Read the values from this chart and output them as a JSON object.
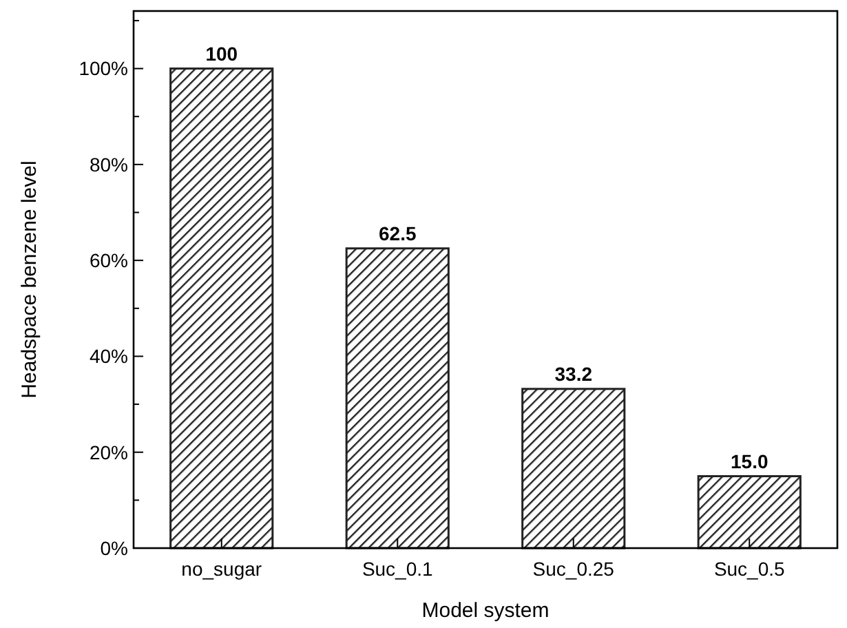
{
  "chart_data": {
    "type": "bar",
    "xlabel": "Model system",
    "ylabel": "Headspace benzene level",
    "categories": [
      "no_sugar",
      "Suc_0.1",
      "Suc_0.25",
      "Suc_0.5"
    ],
    "values": [
      100,
      62.5,
      33.2,
      15.0
    ],
    "value_labels": [
      "100",
      "62.5",
      "33.2",
      "15.0"
    ],
    "color": "#222222",
    "ylim": [
      0,
      112
    ],
    "yticks": [
      {
        "value": 0,
        "label": "0%"
      },
      {
        "value": 10,
        "label": null
      },
      {
        "value": 20,
        "label": "20%"
      },
      {
        "value": 30,
        "label": null
      },
      {
        "value": 40,
        "label": "40%"
      },
      {
        "value": 50,
        "label": null
      },
      {
        "value": 60,
        "label": "60%"
      },
      {
        "value": 70,
        "label": null
      },
      {
        "value": 80,
        "label": "80%"
      },
      {
        "value": 90,
        "label": null
      },
      {
        "value": 100,
        "label": "100%"
      },
      {
        "value": 110,
        "label": null
      }
    ],
    "grid": false
  }
}
